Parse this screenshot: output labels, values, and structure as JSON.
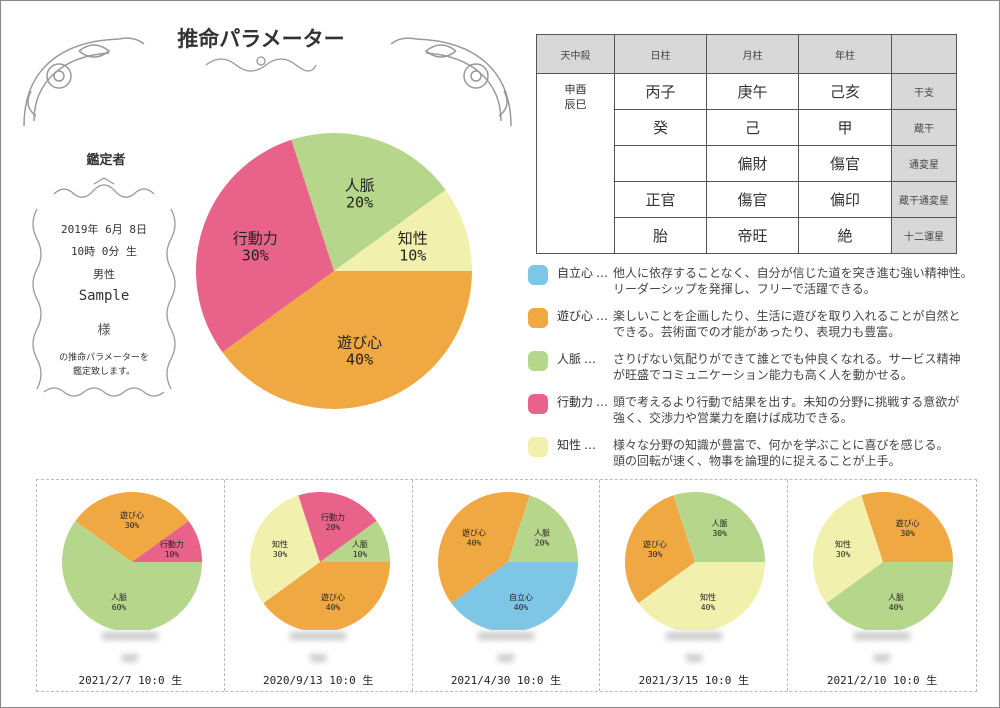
{
  "title": "推命パラメーター",
  "appraiser": {
    "heading": "鑑定者",
    "date": "2019年 6月 8日",
    "time": "10時 0分 生",
    "gender": "男性",
    "name": "Sample",
    "honorific": "様",
    "message_line1": "の推命パラメーターを",
    "message_line2": "鑑定致します。"
  },
  "table": {
    "headers": [
      "天中殺",
      "日柱",
      "月柱",
      "年柱",
      ""
    ],
    "tenchusatsu_line1": "申酉",
    "tenchusatsu_line2": "辰巳",
    "rows": [
      {
        "cells": [
          "丙子",
          "庚午",
          "己亥"
        ],
        "label": "干支"
      },
      {
        "cells": [
          "癸",
          "己",
          "甲"
        ],
        "label": "蔵干"
      },
      {
        "cells": [
          "",
          "偏財",
          "傷官"
        ],
        "label": "通変星"
      },
      {
        "cells": [
          "正官",
          "傷官",
          "偏印"
        ],
        "label": "蔵干通変星"
      },
      {
        "cells": [
          "胎",
          "帝旺",
          "絶"
        ],
        "label": "十二運星"
      }
    ]
  },
  "colors": {
    "自立心": "#7ec6e6",
    "遊び心": "#f0a843",
    "人脈": "#b5d68b",
    "行動力": "#e8628a",
    "知性": "#f1f1ad"
  },
  "legend": [
    {
      "name": "自立心",
      "sep": "…",
      "line1": "他人に依存することなく、自分が信じた道を突き進む強い精神性。",
      "line2": "リーダーシップを発揮し、フリーで活躍できる。"
    },
    {
      "name": "遊び心",
      "sep": "…",
      "line1": "楽しいことを企画したり、生活に遊びを取り入れることが自然と",
      "line2": "できる。芸術面での才能があったり、表現力も豊富。"
    },
    {
      "name": "人脈",
      "sep": "…",
      "line1": "さりげない気配りができて誰とでも仲良くなれる。サービス精神",
      "line2": "が旺盛でコミュニケーション能力も高く人を動かせる。"
    },
    {
      "name": "行動力",
      "sep": "…",
      "line1": "頭で考えるより行動で結果を出す。未知の分野に挑戦する意欲が",
      "line2": "強く、交渉力や営業力を磨けば成功できる。"
    },
    {
      "name": "知性",
      "sep": "…",
      "line1": "様々な分野の知識が豊富で、何かを学ぶことに喜びを感じる。",
      "line2": "頭の回転が速く、物事を論理的に捉えることが上手。"
    }
  ],
  "chart_data": [
    {
      "type": "pie",
      "title": "main",
      "start": "3 o'clock clockwise",
      "slices": [
        {
          "label": "遊び心",
          "value": 40
        },
        {
          "label": "行動力",
          "value": 30
        },
        {
          "label": "人脈",
          "value": 20
        },
        {
          "label": "知性",
          "value": 10
        }
      ]
    },
    {
      "type": "pie",
      "caption": "2021/2/7 10:0 生",
      "slices": [
        {
          "label": "人脈",
          "value": 60
        },
        {
          "label": "遊び心",
          "value": 30
        },
        {
          "label": "行動力",
          "value": 10
        }
      ]
    },
    {
      "type": "pie",
      "caption": "2020/9/13 10:0 生",
      "slices": [
        {
          "label": "遊び心",
          "value": 40
        },
        {
          "label": "知性",
          "value": 30
        },
        {
          "label": "行動力",
          "value": 20
        },
        {
          "label": "人脈",
          "value": 10
        }
      ]
    },
    {
      "type": "pie",
      "caption": "2021/4/30 10:0 生",
      "slices": [
        {
          "label": "自立心",
          "value": 40
        },
        {
          "label": "遊び心",
          "value": 40
        },
        {
          "label": "人脈",
          "value": 20
        }
      ]
    },
    {
      "type": "pie",
      "caption": "2021/3/15 10:0 生",
      "slices": [
        {
          "label": "知性",
          "value": 40
        },
        {
          "label": "遊び心",
          "value": 30
        },
        {
          "label": "人脈",
          "value": 30
        }
      ]
    },
    {
      "type": "pie",
      "caption": "2021/2/10 10:0 生",
      "slices": [
        {
          "label": "人脈",
          "value": 40
        },
        {
          "label": "知性",
          "value": 30
        },
        {
          "label": "遊び心",
          "value": 30
        }
      ]
    }
  ]
}
